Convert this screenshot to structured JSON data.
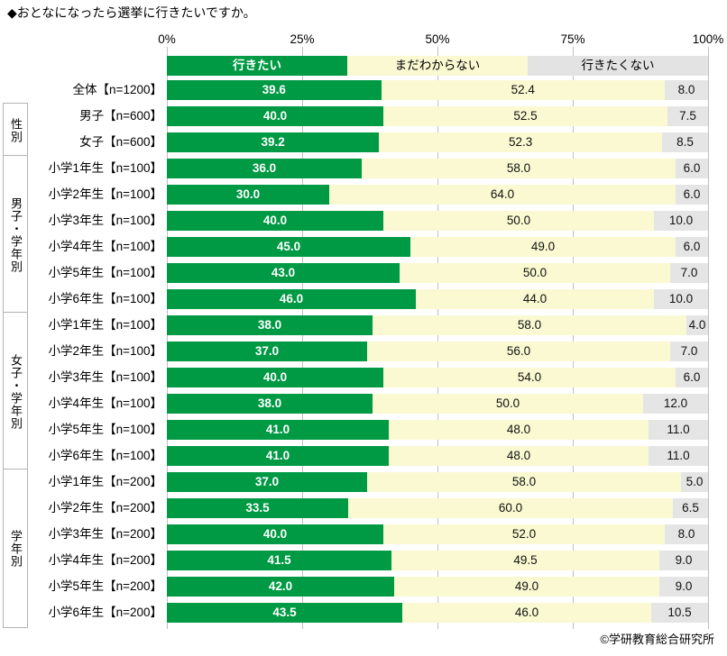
{
  "copyright": "©学研教育総合研究所",
  "chart_data": {
    "type": "bar",
    "variant": "horizontal_stacked_100pct",
    "title": "◆おとなになったら選挙に行きたいですか。",
    "xlim": [
      0,
      100
    ],
    "x_ticks": [
      "0%",
      "25%",
      "50%",
      "75%",
      "100%"
    ],
    "legend_position": "top",
    "grid": "vertical-ticks-in-gaps",
    "series": [
      "行きたい",
      "まだわからない",
      "行きたくない"
    ],
    "colors": [
      "#009944",
      "#faf9d1",
      "#e5e5e5"
    ],
    "legend_colors": [
      "#009944",
      "#faf9d1",
      "#e3e3e3"
    ],
    "groups": [
      {
        "name": "",
        "rows": [
          {
            "label": "全体【n=1200】",
            "values": [
              39.6,
              52.4,
              8.0
            ]
          }
        ]
      },
      {
        "name": "性別",
        "rows": [
          {
            "label": "男子【n=600】",
            "values": [
              40.0,
              52.5,
              7.5
            ]
          },
          {
            "label": "女子【n=600】",
            "values": [
              39.2,
              52.3,
              8.5
            ]
          }
        ]
      },
      {
        "name": "男子・学年別",
        "rows": [
          {
            "label": "小学1年生【n=100】",
            "values": [
              36.0,
              58.0,
              6.0
            ]
          },
          {
            "label": "小学2年生【n=100】",
            "values": [
              30.0,
              64.0,
              6.0
            ]
          },
          {
            "label": "小学3年生【n=100】",
            "values": [
              40.0,
              50.0,
              10.0
            ]
          },
          {
            "label": "小学4年生【n=100】",
            "values": [
              45.0,
              49.0,
              6.0
            ]
          },
          {
            "label": "小学5年生【n=100】",
            "values": [
              43.0,
              50.0,
              7.0
            ]
          },
          {
            "label": "小学6年生【n=100】",
            "values": [
              46.0,
              44.0,
              10.0
            ]
          }
        ]
      },
      {
        "name": "女子・学年別",
        "rows": [
          {
            "label": "小学1年生【n=100】",
            "values": [
              38.0,
              58.0,
              4.0
            ]
          },
          {
            "label": "小学2年生【n=100】",
            "values": [
              37.0,
              56.0,
              7.0
            ]
          },
          {
            "label": "小学3年生【n=100】",
            "values": [
              40.0,
              54.0,
              6.0
            ]
          },
          {
            "label": "小学4年生【n=100】",
            "values": [
              38.0,
              50.0,
              12.0
            ]
          },
          {
            "label": "小学5年生【n=100】",
            "values": [
              41.0,
              48.0,
              11.0
            ]
          },
          {
            "label": "小学6年生【n=100】",
            "values": [
              41.0,
              48.0,
              11.0
            ]
          }
        ]
      },
      {
        "name": "学年別",
        "rows": [
          {
            "label": "小学1年生【n=200】",
            "values": [
              37.0,
              58.0,
              5.0
            ]
          },
          {
            "label": "小学2年生【n=200】",
            "values": [
              33.5,
              60.0,
              6.5
            ]
          },
          {
            "label": "小学3年生【n=200】",
            "values": [
              40.0,
              52.0,
              8.0
            ]
          },
          {
            "label": "小学4年生【n=200】",
            "values": [
              41.5,
              49.5,
              9.0
            ]
          },
          {
            "label": "小学5年生【n=200】",
            "values": [
              42.0,
              49.0,
              9.0
            ]
          },
          {
            "label": "小学6年生【n=200】",
            "values": [
              43.5,
              46.0,
              10.5
            ]
          }
        ]
      }
    ]
  }
}
